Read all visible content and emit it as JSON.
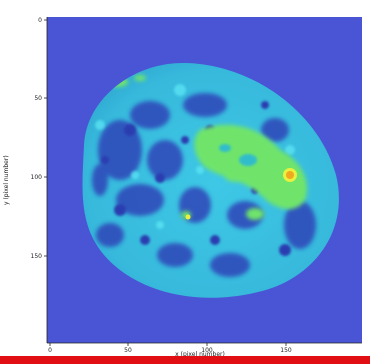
{
  "figure": {
    "title": "",
    "colors": {
      "background": "#4a55d6",
      "deep": "#2c3fb0",
      "cyan": "#3fd6f0",
      "teal": "#2ab8d6",
      "green": "#6ee86a",
      "yellow": "#e8f040",
      "orange": "#f0a820"
    }
  },
  "axes": {
    "x_label": "x (pixel number)",
    "y_label": "y (pixel number)",
    "x_ticks": [
      "0",
      "50",
      "100",
      "150"
    ],
    "y_ticks": [
      "0",
      "50",
      "100",
      "150"
    ]
  },
  "footer": {
    "accent_color": "#e10f14"
  }
}
